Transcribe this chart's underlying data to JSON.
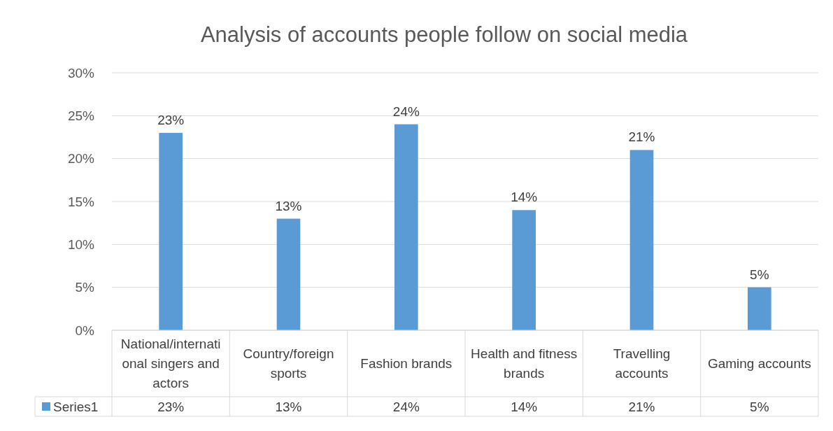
{
  "chart_data": {
    "type": "bar",
    "title": "Analysis of accounts people follow on social media",
    "categories": [
      "National/international singers and actors",
      "Country/foreign sports",
      "Fashion brands",
      "Health and fitness brands",
      "Travelling accounts",
      "Gaming accounts"
    ],
    "series": [
      {
        "name": "Series1",
        "color": "#5b9bd5",
        "values": [
          23,
          13,
          24,
          14,
          21,
          5
        ],
        "value_labels": [
          "23%",
          "13%",
          "24%",
          "14%",
          "21%",
          "5%"
        ]
      }
    ],
    "ylim": [
      0,
      30
    ],
    "yticks": [
      {
        "value": 0,
        "label": "0%"
      },
      {
        "value": 5,
        "label": "5%"
      },
      {
        "value": 10,
        "label": "10%"
      },
      {
        "value": 15,
        "label": "15%"
      },
      {
        "value": 20,
        "label": "20%"
      },
      {
        "value": 25,
        "label": "25%"
      },
      {
        "value": 30,
        "label": "30%"
      }
    ],
    "grid": "y",
    "legend": "bottom"
  }
}
